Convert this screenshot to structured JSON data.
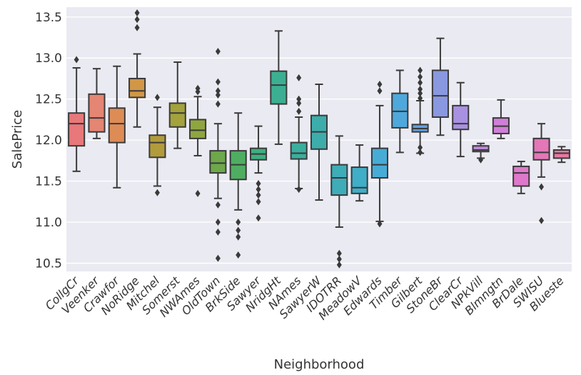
{
  "chart_data": {
    "type": "box",
    "title": "",
    "xlabel": "Neighborhood",
    "ylabel": "SalePrice",
    "ylim": [
      10.4,
      13.62
    ],
    "yticks": [
      "10.5",
      "11.0",
      "11.5",
      "12.0",
      "12.5",
      "13.0",
      "13.5"
    ],
    "grid": true,
    "categories": [
      "CollgCr",
      "Veenker",
      "Crawfor",
      "NoRidge",
      "Mitchel",
      "Somerst",
      "NWAmes",
      "OldTown",
      "BrkSide",
      "Sawyer",
      "NridgHt",
      "NAmes",
      "SawyerW",
      "IDOTRR",
      "MeadowV",
      "Edwards",
      "Timber",
      "Gilbert",
      "StoneBr",
      "ClearCr",
      "NPkVill",
      "Blmngtn",
      "BrDale",
      "SWISU",
      "Blueste"
    ],
    "boxes": [
      {
        "whislo": 11.62,
        "q1": 11.93,
        "med": 12.2,
        "q3": 12.33,
        "whishi": 12.88,
        "color": "#e8787a",
        "fliers": [
          12.98
        ]
      },
      {
        "whislo": 12.02,
        "q1": 12.1,
        "med": 12.27,
        "q3": 12.56,
        "whishi": 12.87,
        "color": "#e58573",
        "fliers": []
      },
      {
        "whislo": 11.42,
        "q1": 11.97,
        "med": 12.2,
        "q3": 12.39,
        "whishi": 12.9,
        "color": "#de8c56",
        "fliers": []
      },
      {
        "whislo": 12.16,
        "q1": 12.52,
        "med": 12.6,
        "q3": 12.75,
        "whishi": 13.05,
        "color": "#d19746",
        "fliers": [
          13.37,
          13.47,
          13.55
        ]
      },
      {
        "whislo": 11.44,
        "q1": 11.79,
        "med": 11.97,
        "q3": 12.06,
        "whishi": 12.4,
        "color": "#b19b3c",
        "fliers": [
          11.36,
          12.52
        ]
      },
      {
        "whislo": 11.9,
        "q1": 12.16,
        "med": 12.33,
        "q3": 12.45,
        "whishi": 12.95,
        "color": "#a3a23c",
        "fliers": []
      },
      {
        "whislo": 11.81,
        "q1": 12.02,
        "med": 12.12,
        "q3": 12.25,
        "whishi": 12.53,
        "color": "#8fa63f",
        "fliers": [
          11.35,
          12.59,
          12.63
        ]
      },
      {
        "whislo": 11.29,
        "q1": 11.6,
        "med": 11.72,
        "q3": 11.87,
        "whishi": 12.2,
        "color": "#6da84a",
        "fliers": [
          10.56,
          10.88,
          11.0,
          11.21,
          12.44,
          12.55,
          12.6,
          12.71,
          13.08
        ]
      },
      {
        "whislo": 11.15,
        "q1": 11.52,
        "med": 11.7,
        "q3": 11.87,
        "whishi": 12.33,
        "color": "#4fad62",
        "fliers": [
          10.6,
          10.82,
          10.9,
          11.0
        ]
      },
      {
        "whislo": 11.6,
        "q1": 11.76,
        "med": 11.83,
        "q3": 11.9,
        "whishi": 12.17,
        "color": "#3fae80",
        "fliers": [
          11.05,
          11.25,
          11.33,
          11.4,
          11.47
        ]
      },
      {
        "whislo": 11.95,
        "q1": 12.44,
        "med": 12.67,
        "q3": 12.84,
        "whishi": 13.33,
        "color": "#3caf92",
        "fliers": []
      },
      {
        "whislo": 11.41,
        "q1": 11.77,
        "med": 11.84,
        "q3": 11.97,
        "whishi": 12.28,
        "color": "#3bae9e",
        "fliers": [
          11.4,
          12.35,
          12.45,
          12.5,
          12.76
        ]
      },
      {
        "whislo": 11.27,
        "q1": 11.89,
        "med": 12.1,
        "q3": 12.3,
        "whishi": 12.68,
        "color": "#3cadab",
        "fliers": []
      },
      {
        "whislo": 10.94,
        "q1": 11.33,
        "med": 11.54,
        "q3": 11.7,
        "whishi": 12.05,
        "color": "#3eadb8",
        "fliers": [
          10.48,
          10.55,
          10.62
        ]
      },
      {
        "whislo": 11.26,
        "q1": 11.35,
        "med": 11.42,
        "q3": 11.67,
        "whishi": 11.94,
        "color": "#40aec7",
        "fliers": []
      },
      {
        "whislo": 11.01,
        "q1": 11.54,
        "med": 11.7,
        "q3": 11.9,
        "whishi": 12.42,
        "color": "#46acd6",
        "fliers": [
          10.98,
          12.6,
          12.68
        ]
      },
      {
        "whislo": 11.85,
        "q1": 12.15,
        "med": 12.35,
        "q3": 12.57,
        "whishi": 12.85,
        "color": "#4fa8dc",
        "fliers": []
      },
      {
        "whislo": 11.84,
        "q1": 12.1,
        "med": 12.14,
        "q3": 12.19,
        "whishi": 12.48,
        "color": "#62a0de",
        "fliers": [
          11.85,
          11.91,
          12.51,
          12.57,
          12.62,
          12.7,
          12.77,
          12.85
        ]
      },
      {
        "whislo": 12.06,
        "q1": 12.28,
        "med": 12.54,
        "q3": 12.85,
        "whishi": 13.24,
        "color": "#8a98e0",
        "fliers": []
      },
      {
        "whislo": 11.8,
        "q1": 12.13,
        "med": 12.2,
        "q3": 12.42,
        "whishi": 12.7,
        "color": "#a891e0",
        "fliers": []
      },
      {
        "whislo": 11.78,
        "q1": 11.86,
        "med": 11.88,
        "q3": 11.93,
        "whishi": 11.96,
        "color": "#bf87dc",
        "fliers": [
          11.76
        ]
      },
      {
        "whislo": 12.02,
        "q1": 12.08,
        "med": 12.17,
        "q3": 12.27,
        "whishi": 12.49,
        "color": "#d07fd8",
        "fliers": []
      },
      {
        "whislo": 11.35,
        "q1": 11.44,
        "med": 11.6,
        "q3": 11.68,
        "whishi": 11.74,
        "color": "#df78cb",
        "fliers": []
      },
      {
        "whislo": 11.55,
        "q1": 11.76,
        "med": 11.85,
        "q3": 12.02,
        "whishi": 12.2,
        "color": "#e377b8",
        "fliers": [
          11.02,
          11.43
        ]
      },
      {
        "whislo": 11.73,
        "q1": 11.78,
        "med": 11.84,
        "q3": 11.88,
        "whishi": 11.92,
        "color": "#e679a3",
        "fliers": []
      }
    ]
  }
}
